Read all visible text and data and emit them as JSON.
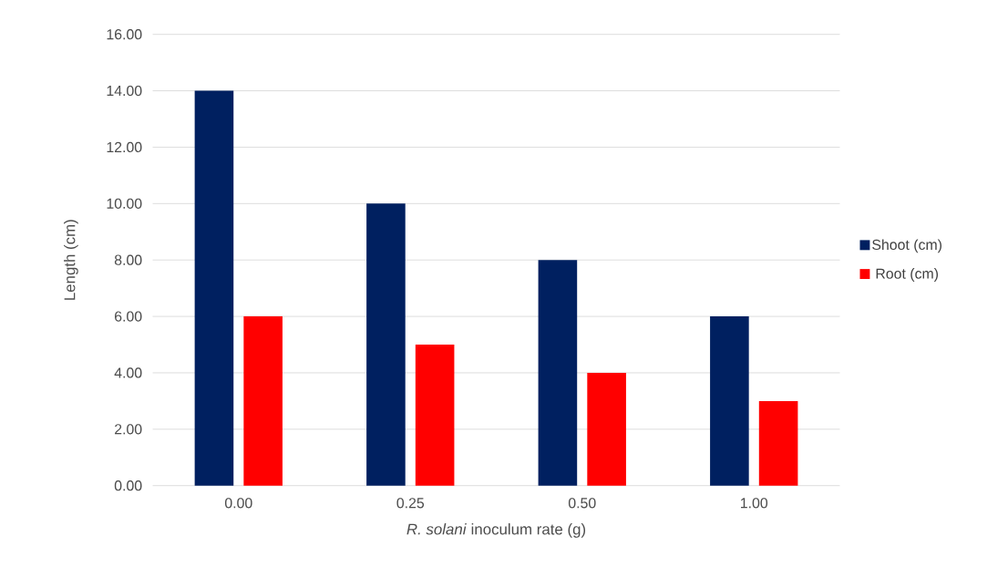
{
  "chart_data": {
    "type": "bar",
    "categories": [
      "0.00",
      "0.25",
      "0.50",
      "1.00"
    ],
    "series": [
      {
        "name": "Shoot (cm)",
        "color": "#002060",
        "values": [
          14,
          10,
          8,
          6
        ]
      },
      {
        "name": "Root (cm)",
        "color": "#ff0000",
        "values": [
          6,
          5,
          4,
          3
        ]
      }
    ],
    "xlabel": "*R. solani* inoculum rate (g)",
    "ylabel": "Length (cm)",
    "ylim": [
      0,
      16
    ],
    "yticks": [
      {
        "value": 0,
        "label": "0.00"
      },
      {
        "value": 2,
        "label": "2.00"
      },
      {
        "value": 4,
        "label": "4.00"
      },
      {
        "value": 6,
        "label": "6.00"
      },
      {
        "value": 8,
        "label": "8.00"
      },
      {
        "value": 10,
        "label": "10.00"
      },
      {
        "value": 12,
        "label": "12.00"
      },
      {
        "value": 14,
        "label": "14.00"
      },
      {
        "value": 16,
        "label": "16.00"
      }
    ],
    "grid": "y",
    "legend": "right"
  }
}
